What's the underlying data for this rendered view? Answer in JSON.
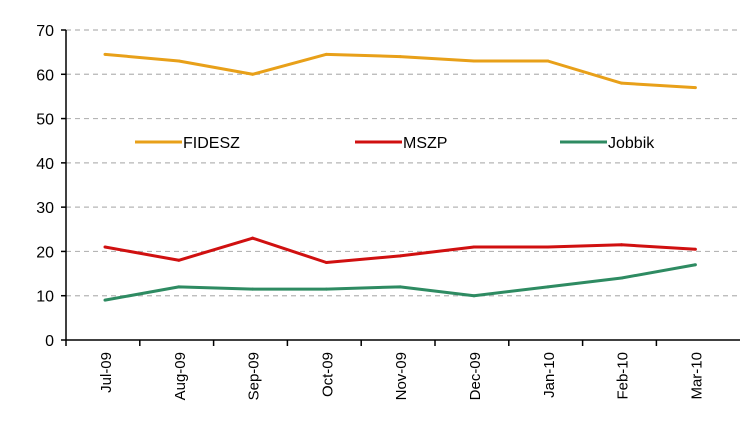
{
  "chart_data": {
    "type": "line",
    "title": "",
    "xlabel": "",
    "ylabel": "",
    "categories": [
      "Jul-09",
      "Aug-09",
      "Sep-09",
      "Oct-09",
      "Nov-09",
      "Dec-09",
      "Jan-10",
      "Feb-10",
      "Mar-10"
    ],
    "ylim": [
      0,
      70
    ],
    "yticks": [
      0,
      10,
      20,
      30,
      40,
      50,
      60,
      70
    ],
    "grid": true,
    "legend_placement": "inside-top",
    "series": [
      {
        "name": "FIDESZ",
        "color": "#e8a019",
        "values": [
          64.5,
          63,
          60,
          64.5,
          64,
          63,
          63,
          58,
          57
        ]
      },
      {
        "name": "MSZP",
        "color": "#d01010",
        "values": [
          21,
          18,
          23,
          17.5,
          19,
          21,
          21,
          21.5,
          20.5
        ]
      },
      {
        "name": "Jobbik",
        "color": "#2e8b62",
        "values": [
          9,
          12,
          11.5,
          11.5,
          12,
          10,
          12,
          14,
          17
        ]
      }
    ]
  }
}
